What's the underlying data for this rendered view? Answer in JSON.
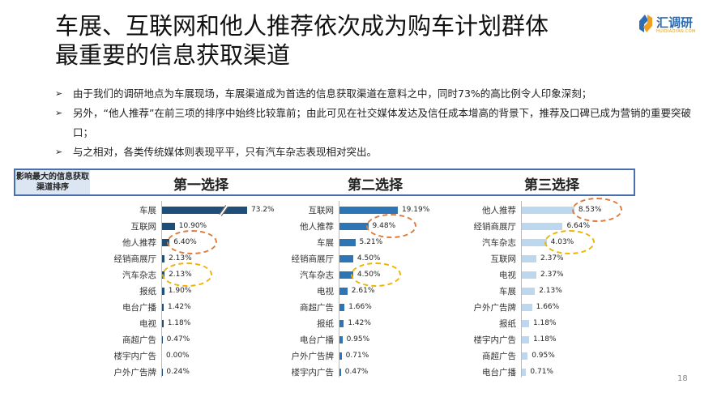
{
  "title": [
    "车展、互联网和他人推荐依次成为购车计划群体",
    "最重要的信息获取渠道"
  ],
  "logo": {
    "name": "汇调研",
    "sub": "HUIDIAOYAN.COM"
  },
  "bullets": [
    "由于我们的调研地点为车展现场，车展渠道成为首选的信息获取渠道在意料之中，同时73%的高比例令人印象深刻；",
    "另外，“他人推荐”在前三项的排序中始终比较靠前；由此可见在社交媒体发达及信任成本增高的背景下，推荐及口碑已成为营销的重要突破口；",
    "与之相对，各类传统媒体则表现平平，只有汽车杂志表现相对突出。"
  ],
  "header_label": "影响最大的信息获取渠道排序",
  "chart_data": [
    {
      "type": "bar",
      "orientation": "horizontal",
      "title": "第一选择",
      "color": "#1f4e79",
      "axis_break": true,
      "categories": [
        "车展",
        "互联网",
        "他人推荐",
        "经销商展厅",
        "汽车杂志",
        "报纸",
        "电台广播",
        "电视",
        "商超广告",
        "楼宇内广告",
        "户外广告牌"
      ],
      "values": [
        73.2,
        10.9,
        6.4,
        2.13,
        2.13,
        1.9,
        1.42,
        1.18,
        0.47,
        0.0,
        0.24
      ],
      "labels": [
        "73.2%",
        "10.90%",
        "6.40%",
        "2.13%",
        "2.13%",
        "1.90%",
        "1.42%",
        "1.18%",
        "0.47%",
        "0.00%",
        "0.24%"
      ],
      "highlights": [
        {
          "category": "他人推荐",
          "color": "#e07b39"
        },
        {
          "category": "汽车杂志",
          "color": "#f0b400"
        }
      ]
    },
    {
      "type": "bar",
      "orientation": "horizontal",
      "title": "第二选择",
      "color": "#2e75b6",
      "categories": [
        "互联网",
        "他人推荐",
        "车展",
        "经销商展厅",
        "汽车杂志",
        "电视",
        "商超广告",
        "报纸",
        "电台广播",
        "户外广告牌",
        "楼宇内广告"
      ],
      "values": [
        19.19,
        9.48,
        5.21,
        4.5,
        4.5,
        2.61,
        1.66,
        1.42,
        0.95,
        0.71,
        0.47
      ],
      "labels": [
        "19.19%",
        "9.48%",
        "5.21%",
        "4.50%",
        "4.50%",
        "2.61%",
        "1.66%",
        "1.42%",
        "0.95%",
        "0.71%",
        "0.47%"
      ],
      "highlights": [
        {
          "category": "他人推荐",
          "color": "#e07b39"
        },
        {
          "category": "汽车杂志",
          "color": "#f0b400"
        }
      ]
    },
    {
      "type": "bar",
      "orientation": "horizontal",
      "title": "第三选择",
      "color": "#bdd7ee",
      "categories": [
        "他人推荐",
        "经销商展厅",
        "汽车杂志",
        "互联网",
        "电视",
        "车展",
        "户外广告牌",
        "报纸",
        "楼宇内广告",
        "商超广告",
        "电台广播"
      ],
      "values": [
        8.53,
        6.64,
        4.03,
        2.37,
        2.37,
        2.13,
        1.66,
        1.18,
        1.18,
        0.95,
        0.71
      ],
      "labels": [
        "8.53%",
        "6.64%",
        "4.03%",
        "2.37%",
        "2.37%",
        "2.13%",
        "1.66%",
        "1.18%",
        "1.18%",
        "0.95%",
        "0.71%"
      ],
      "highlights": [
        {
          "category": "他人推荐",
          "color": "#e07b39"
        },
        {
          "category": "汽车杂志",
          "color": "#f0b400"
        }
      ]
    }
  ],
  "page_number": "18"
}
